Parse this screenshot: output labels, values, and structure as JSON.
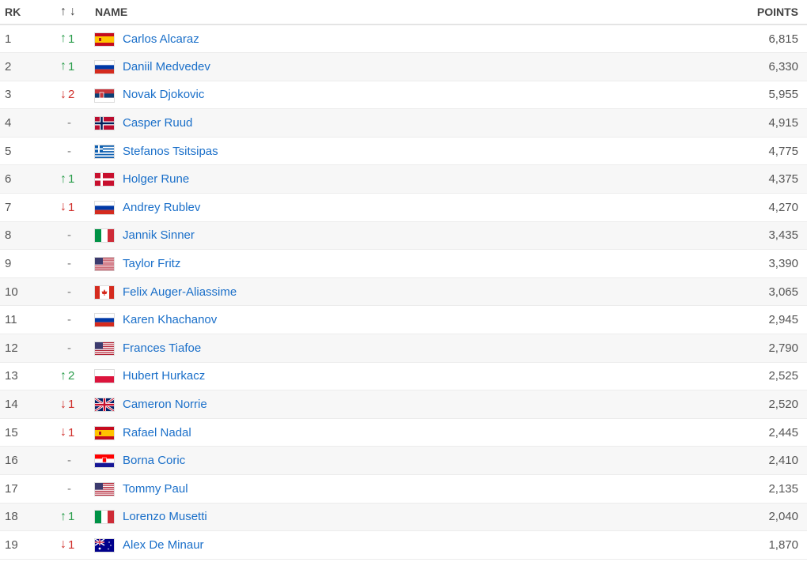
{
  "header": {
    "rank": "RK",
    "trend_up": "↑",
    "trend_down": "↓",
    "name": "NAME",
    "points": "POINTS"
  },
  "colors": {
    "up": "#2a9d4b",
    "down": "#d0312d",
    "link": "#1a6fc9"
  },
  "rows": [
    {
      "rank": "1",
      "trend": "up",
      "change": "1",
      "country": "ESP",
      "name": "Carlos Alcaraz",
      "points": "6,815"
    },
    {
      "rank": "2",
      "trend": "up",
      "change": "1",
      "country": "RUS",
      "name": "Daniil Medvedev",
      "points": "6,330"
    },
    {
      "rank": "3",
      "trend": "down",
      "change": "2",
      "country": "SRB",
      "name": "Novak Djokovic",
      "points": "5,955"
    },
    {
      "rank": "4",
      "trend": "none",
      "change": "-",
      "country": "NOR",
      "name": "Casper Ruud",
      "points": "4,915"
    },
    {
      "rank": "5",
      "trend": "none",
      "change": "-",
      "country": "GRE",
      "name": "Stefanos Tsitsipas",
      "points": "4,775"
    },
    {
      "rank": "6",
      "trend": "up",
      "change": "1",
      "country": "DEN",
      "name": "Holger Rune",
      "points": "4,375"
    },
    {
      "rank": "7",
      "trend": "down",
      "change": "1",
      "country": "RUS",
      "name": "Andrey Rublev",
      "points": "4,270"
    },
    {
      "rank": "8",
      "trend": "none",
      "change": "-",
      "country": "ITA",
      "name": "Jannik Sinner",
      "points": "3,435"
    },
    {
      "rank": "9",
      "trend": "none",
      "change": "-",
      "country": "USA",
      "name": "Taylor Fritz",
      "points": "3,390"
    },
    {
      "rank": "10",
      "trend": "none",
      "change": "-",
      "country": "CAN",
      "name": "Felix Auger-Aliassime",
      "points": "3,065"
    },
    {
      "rank": "11",
      "trend": "none",
      "change": "-",
      "country": "RUS",
      "name": "Karen Khachanov",
      "points": "2,945"
    },
    {
      "rank": "12",
      "trend": "none",
      "change": "-",
      "country": "USA",
      "name": "Frances Tiafoe",
      "points": "2,790"
    },
    {
      "rank": "13",
      "trend": "up",
      "change": "2",
      "country": "POL",
      "name": "Hubert Hurkacz",
      "points": "2,525"
    },
    {
      "rank": "14",
      "trend": "down",
      "change": "1",
      "country": "GBR",
      "name": "Cameron Norrie",
      "points": "2,520"
    },
    {
      "rank": "15",
      "trend": "down",
      "change": "1",
      "country": "ESP",
      "name": "Rafael Nadal",
      "points": "2,445"
    },
    {
      "rank": "16",
      "trend": "none",
      "change": "-",
      "country": "CRO",
      "name": "Borna Coric",
      "points": "2,410"
    },
    {
      "rank": "17",
      "trend": "none",
      "change": "-",
      "country": "USA",
      "name": "Tommy Paul",
      "points": "2,135"
    },
    {
      "rank": "18",
      "trend": "up",
      "change": "1",
      "country": "ITA",
      "name": "Lorenzo Musetti",
      "points": "2,040"
    },
    {
      "rank": "19",
      "trend": "down",
      "change": "1",
      "country": "AUS",
      "name": "Alex De Minaur",
      "points": "1,870"
    }
  ]
}
